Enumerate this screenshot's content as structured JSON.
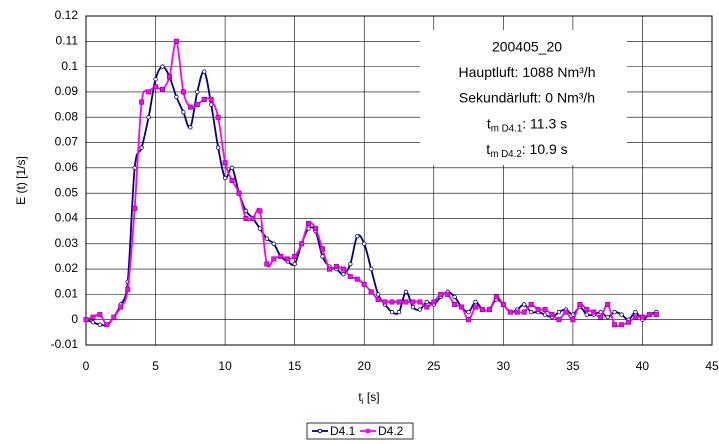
{
  "chart_data": {
    "type": "line",
    "y_label": "E (t) [1/s]",
    "x_label": {
      "text": "t",
      "sub": "i",
      "after": " [s]"
    },
    "annotations": [
      "200405_20",
      "Hauptluft: 1088 Nm³/h",
      "Sekundärluft: 0 Nm³/h",
      {
        "text": "t",
        "sub": "m D4.1",
        "after": ": 11.3 s"
      },
      {
        "text": "t",
        "sub": "m D4.2",
        "after": ": 10.9 s"
      }
    ],
    "xlim": [
      0,
      45
    ],
    "xticks": [
      0,
      5,
      10,
      15,
      20,
      25,
      30,
      35,
      40,
      45
    ],
    "ylim": [
      -0.01,
      0.12
    ],
    "yticks": [
      -0.01,
      0,
      0.01,
      0.02,
      0.03,
      0.04,
      0.05,
      0.06,
      0.07,
      0.08,
      0.09,
      0.1,
      0.11,
      0.12
    ],
    "grid": true,
    "legend": "bottom",
    "x": [
      0,
      0.5,
      1,
      1.5,
      2,
      2.5,
      3,
      3.5,
      4,
      4.5,
      5,
      5.5,
      6,
      6.5,
      7,
      7.5,
      8,
      8.5,
      9,
      9.5,
      10,
      10.5,
      11,
      11.5,
      12,
      12.5,
      13,
      13.5,
      14,
      14.5,
      15,
      15.5,
      16,
      16.5,
      17,
      17.5,
      18,
      18.5,
      19,
      19.5,
      20,
      20.5,
      21,
      21.5,
      22,
      22.5,
      23,
      23.5,
      24,
      24.5,
      25,
      25.5,
      26,
      26.5,
      27,
      27.5,
      28,
      28.5,
      29,
      29.5,
      30,
      30.5,
      31,
      31.5,
      32,
      32.5,
      33,
      33.5,
      34,
      34.5,
      35,
      35.5,
      36,
      36.5,
      37,
      37.5,
      38,
      38.5,
      39,
      39.5,
      40,
      40.5,
      41
    ],
    "series": [
      {
        "name": "D4.1",
        "color": "#000080",
        "marker": "circle",
        "values": [
          0,
          -0.001,
          -0.002,
          -0.002,
          0.001,
          0.006,
          0.015,
          0.06,
          0.068,
          0.08,
          0.095,
          0.1,
          0.096,
          0.088,
          0.082,
          0.076,
          0.09,
          0.098,
          0.085,
          0.068,
          0.056,
          0.06,
          0.05,
          0.043,
          0.04,
          0.036,
          0.032,
          0.03,
          0.025,
          0.023,
          0.022,
          0.03,
          0.036,
          0.035,
          0.025,
          0.021,
          0.02,
          0.018,
          0.022,
          0.033,
          0.03,
          0.02,
          0.01,
          0.006,
          0.003,
          0.003,
          0.011,
          0.005,
          0.004,
          0.007,
          0.006,
          0.009,
          0.011,
          0.009,
          0.005,
          0.003,
          0.007,
          0.004,
          0.004,
          0.008,
          0.006,
          0.003,
          0.004,
          0.006,
          0.003,
          0.003,
          0.002,
          0.001,
          0.003,
          0.004,
          0.002,
          0.005,
          0.002,
          0.002,
          0.003,
          0.001,
          0.003,
          0.002,
          0,
          0.003,
          0,
          0.002,
          0.003
        ]
      },
      {
        "name": "D4.2",
        "color": "#ff00ff",
        "marker": "square",
        "values": [
          0,
          0.001,
          0.002,
          -0.002,
          0.001,
          0.005,
          0.012,
          0.044,
          0.086,
          0.09,
          0.092,
          0.091,
          0.096,
          0.11,
          0.09,
          0.084,
          0.085,
          0.087,
          0.087,
          0.08,
          0.062,
          0.055,
          0.05,
          0.04,
          0.04,
          0.043,
          0.022,
          0.024,
          0.025,
          0.024,
          0.025,
          0.03,
          0.038,
          0.036,
          0.028,
          0.02,
          0.021,
          0.02,
          0.017,
          0.016,
          0.014,
          0.011,
          0.008,
          0.007,
          0.007,
          0.007,
          0.007,
          0.007,
          0.007,
          0.005,
          0.007,
          0.01,
          0.01,
          0.006,
          0.005,
          0,
          0.005,
          0.004,
          0.004,
          0.009,
          0.006,
          0.003,
          0.003,
          0.003,
          0.006,
          0.004,
          0.004,
          0.002,
          0,
          0.003,
          0,
          0.006,
          0.004,
          0.003,
          0.001,
          0.006,
          -0.002,
          -0.002,
          -0.001,
          0.001,
          0.001,
          0.002,
          0.002
        ]
      }
    ]
  }
}
